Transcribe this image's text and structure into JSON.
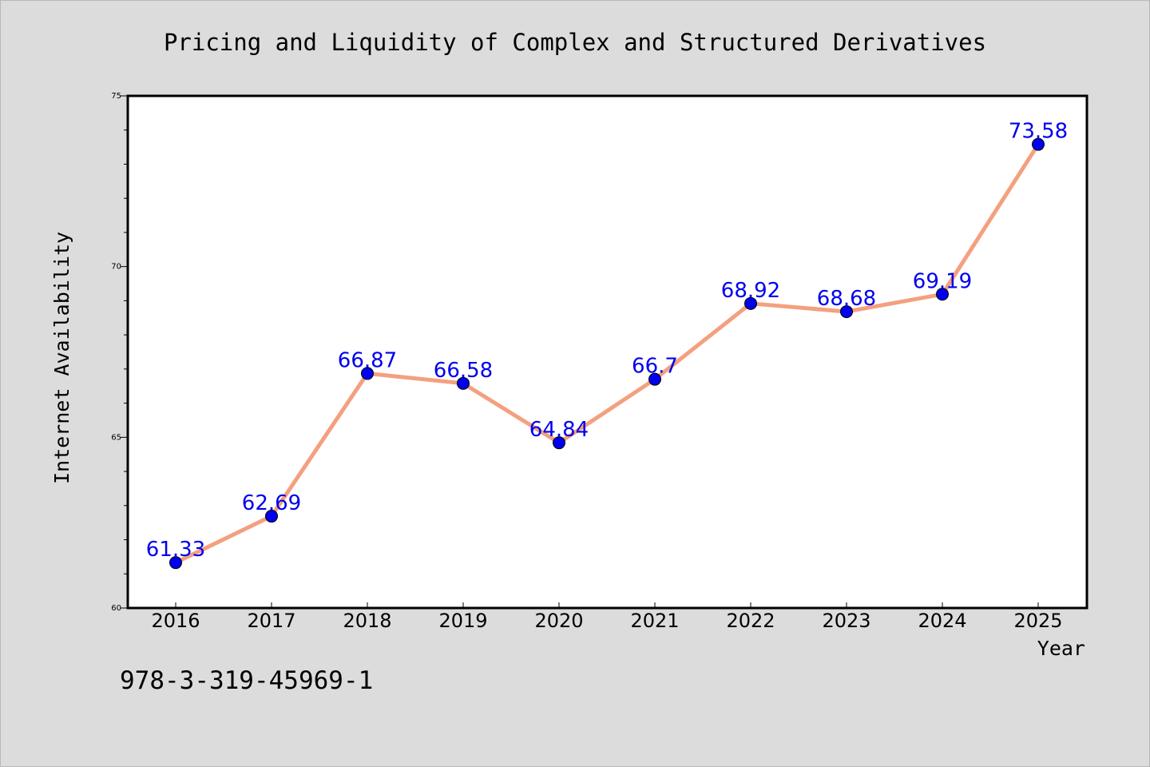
{
  "chart_data": {
    "type": "line",
    "title": "Pricing and Liquidity of Complex and Structured Derivatives",
    "xlabel": "Year",
    "ylabel": "Internet Availability",
    "categories": [
      "2016",
      "2017",
      "2018",
      "2019",
      "2020",
      "2021",
      "2022",
      "2023",
      "2024",
      "2025"
    ],
    "series": [
      {
        "values": [
          61.33,
          62.69,
          66.87,
          66.58,
          64.84,
          66.7,
          68.92,
          68.68,
          69.19,
          73.58
        ]
      }
    ],
    "data_labels": [
      "61.33",
      "62.69",
      "66.87",
      "66.58",
      "64.84",
      "66.7",
      "68.92",
      "68.68",
      "69.19",
      "73.58"
    ],
    "ylim": [
      60,
      75
    ],
    "yticks": [
      60,
      65,
      70,
      75
    ],
    "y_minor_step": 1,
    "grid": false,
    "line_color": "#f4a07f",
    "marker_color": "#0000ee",
    "label_color": "#0000ee"
  },
  "footer": {
    "identifier": "978-3-319-45969-1"
  }
}
